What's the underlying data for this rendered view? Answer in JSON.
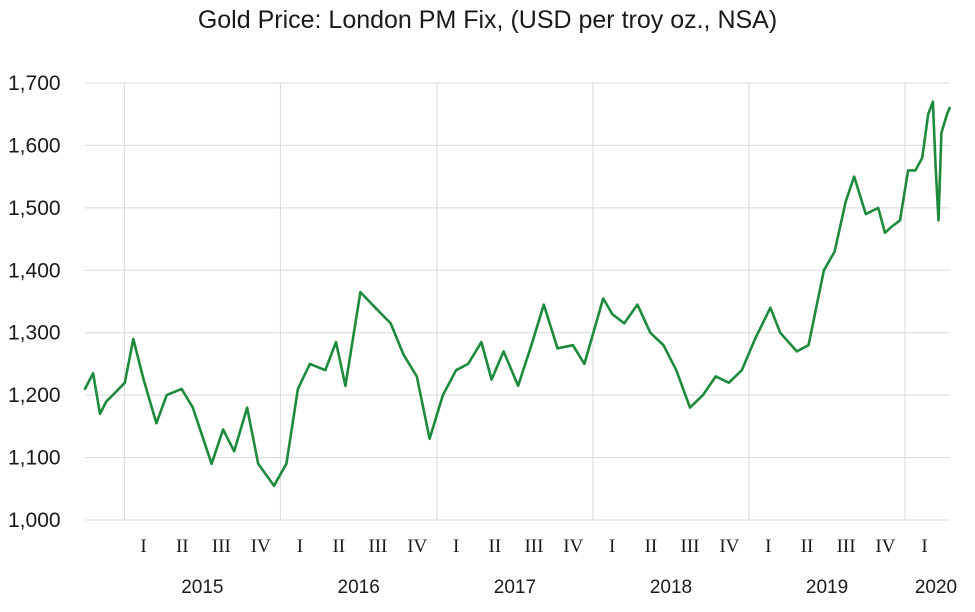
{
  "chart_data": {
    "type": "line",
    "title": "Gold Price: London PM Fix, (USD per troy oz., NSA)",
    "xlabel": "",
    "ylabel": "",
    "ylim": [
      1000,
      1700
    ],
    "y_ticks": [
      "1,000",
      "1,100",
      "1,200",
      "1,300",
      "1,400",
      "1,500",
      "1,600",
      "1,700"
    ],
    "y_tick_values": [
      1000,
      1100,
      1200,
      1300,
      1400,
      1500,
      1600,
      1700
    ],
    "x_range": [
      "2014-10-01",
      "2020-04-15"
    ],
    "quarter_labels": [
      "I",
      "II",
      "III",
      "IV",
      "I",
      "II",
      "III",
      "IV",
      "I",
      "II",
      "III",
      "IV",
      "I",
      "II",
      "III",
      "IV",
      "I",
      "II",
      "III",
      "IV",
      "I"
    ],
    "year_labels": [
      "2015",
      "2016",
      "2017",
      "2018",
      "2019",
      "2020"
    ],
    "grid": "vertical gridlines at year boundaries",
    "line_color": "#1e8a3c",
    "series": [
      {
        "x": [
          "2014-10-01",
          "2014-10-20",
          "2014-11-05",
          "2014-11-20",
          "2014-12-05",
          "2015-01-02",
          "2015-01-22",
          "2015-02-15",
          "2015-03-17",
          "2015-04-10",
          "2015-05-15",
          "2015-06-10",
          "2015-07-24",
          "2015-08-20",
          "2015-09-15",
          "2015-10-15",
          "2015-11-10",
          "2015-12-17",
          "2016-01-15",
          "2016-02-11",
          "2016-03-10",
          "2016-04-15",
          "2016-05-10",
          "2016-06-01",
          "2016-07-06",
          "2016-08-10",
          "2016-09-15",
          "2016-10-15",
          "2016-11-15",
          "2016-12-15",
          "2017-01-15",
          "2017-02-15",
          "2017-03-15",
          "2017-04-15",
          "2017-05-09",
          "2017-06-06",
          "2017-07-10",
          "2017-08-10",
          "2017-09-08",
          "2017-10-10",
          "2017-11-15",
          "2017-12-12",
          "2018-01-25",
          "2018-02-15",
          "2018-03-15",
          "2018-04-15",
          "2018-05-15",
          "2018-06-15",
          "2018-07-15",
          "2018-08-16",
          "2018-09-15",
          "2018-10-15",
          "2018-11-15",
          "2018-12-15",
          "2019-01-15",
          "2019-02-20",
          "2019-03-15",
          "2019-04-23",
          "2019-05-20",
          "2019-06-25",
          "2019-07-20",
          "2019-08-15",
          "2019-09-04",
          "2019-10-01",
          "2019-10-30",
          "2019-11-15",
          "2019-12-01",
          "2019-12-20",
          "2020-01-08",
          "2020-01-25",
          "2020-02-10",
          "2020-02-24",
          "2020-03-06",
          "2020-03-12",
          "2020-03-19",
          "2020-03-26",
          "2020-04-08",
          "2020-04-14"
        ],
        "y": [
          1210,
          1235,
          1170,
          1190,
          1200,
          1220,
          1290,
          1225,
          1155,
          1200,
          1210,
          1180,
          1090,
          1145,
          1110,
          1180,
          1090,
          1055,
          1090,
          1210,
          1250,
          1240,
          1285,
          1215,
          1365,
          1340,
          1315,
          1265,
          1230,
          1130,
          1200,
          1240,
          1250,
          1285,
          1225,
          1270,
          1215,
          1280,
          1345,
          1275,
          1280,
          1250,
          1355,
          1330,
          1315,
          1345,
          1300,
          1280,
          1240,
          1180,
          1200,
          1230,
          1220,
          1240,
          1290,
          1340,
          1300,
          1270,
          1280,
          1400,
          1430,
          1510,
          1550,
          1490,
          1500,
          1460,
          1470,
          1480,
          1560,
          1560,
          1580,
          1650,
          1670,
          1570,
          1480,
          1620,
          1650,
          1660
        ]
      }
    ]
  }
}
